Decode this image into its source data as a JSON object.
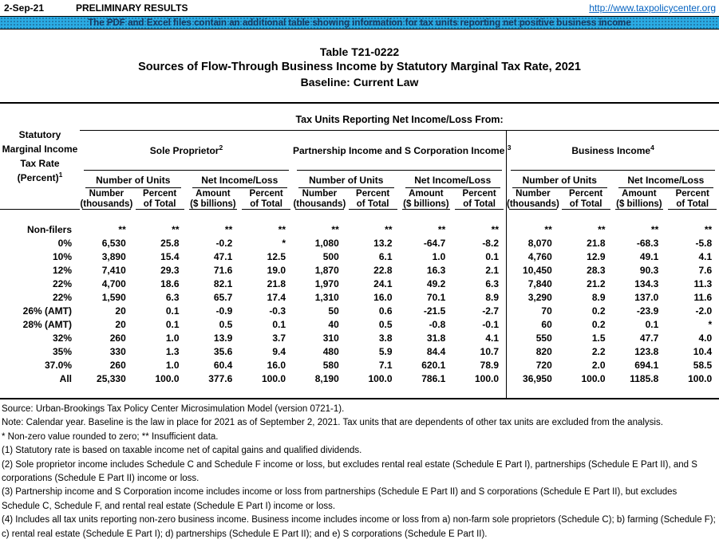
{
  "top": {
    "date": "2-Sep-21",
    "preliminary": "PRELIMINARY RESULTS",
    "url": "http://www.taxpolicycenter.org"
  },
  "banner": {
    "text": "The PDF and Excel files contain an additional table showing information for tax units reporting net positive business income",
    "bg_color": "#2BACE4",
    "text_color": "#17375E"
  },
  "link_color": "#0563C1",
  "title": {
    "line1": "Table T21-0222",
    "line2": "Sources of Flow-Through Business Income by Statutory Marginal Tax Rate, 2021",
    "line3": "Baseline: Current Law"
  },
  "table": {
    "span_header": "Tax Units Reporting Net Income/Loss From:",
    "row_header": {
      "l1": "Statutory",
      "l2": "Marginal Income",
      "l3": "Tax Rate",
      "l4": "(Percent)",
      "sup": "1"
    },
    "groups": [
      {
        "label": "Sole Proprietor",
        "sup": "2"
      },
      {
        "label": "Partnership Income and S Corporation Income",
        "sup": "3"
      },
      {
        "label": "Business Income",
        "sup": "4"
      }
    ],
    "subgroups": [
      "Number of Units",
      "Net Income/Loss"
    ],
    "col_headers": [
      {
        "t": "Number",
        "b": "(thousands)"
      },
      {
        "t": "Percent",
        "b": "of Total"
      },
      {
        "t": "Amount",
        "b": "($ billions)"
      },
      {
        "t": "Percent",
        "b": "of Total"
      }
    ],
    "rows": [
      {
        "label": "Non-filers",
        "cells": [
          "**",
          "**",
          "**",
          "**",
          "**",
          "**",
          "**",
          "**",
          "**",
          "**",
          "**",
          "**"
        ]
      },
      {
        "label": "0%",
        "cells": [
          "6,530",
          "25.8",
          "-0.2",
          "*",
          "1,080",
          "13.2",
          "-64.7",
          "-8.2",
          "8,070",
          "21.8",
          "-68.3",
          "-5.8"
        ]
      },
      {
        "label": "10%",
        "cells": [
          "3,890",
          "15.4",
          "47.1",
          "12.5",
          "500",
          "6.1",
          "1.0",
          "0.1",
          "4,760",
          "12.9",
          "49.1",
          "4.1"
        ]
      },
      {
        "label": "12%",
        "cells": [
          "7,410",
          "29.3",
          "71.6",
          "19.0",
          "1,870",
          "22.8",
          "16.3",
          "2.1",
          "10,450",
          "28.3",
          "90.3",
          "7.6"
        ]
      },
      {
        "label": "22%",
        "cells": [
          "4,700",
          "18.6",
          "82.1",
          "21.8",
          "1,970",
          "24.1",
          "49.2",
          "6.3",
          "7,840",
          "21.2",
          "134.3",
          "11.3"
        ]
      },
      {
        "label": "22%",
        "cells": [
          "1,590",
          "6.3",
          "65.7",
          "17.4",
          "1,310",
          "16.0",
          "70.1",
          "8.9",
          "3,290",
          "8.9",
          "137.0",
          "11.6"
        ]
      },
      {
        "label": "26% (AMT)",
        "cells": [
          "20",
          "0.1",
          "-0.9",
          "-0.3",
          "50",
          "0.6",
          "-21.5",
          "-2.7",
          "70",
          "0.2",
          "-23.9",
          "-2.0"
        ]
      },
      {
        "label": "28% (AMT)",
        "cells": [
          "20",
          "0.1",
          "0.5",
          "0.1",
          "40",
          "0.5",
          "-0.8",
          "-0.1",
          "60",
          "0.2",
          "0.1",
          "*"
        ]
      },
      {
        "label": "32%",
        "cells": [
          "260",
          "1.0",
          "13.9",
          "3.7",
          "310",
          "3.8",
          "31.8",
          "4.1",
          "550",
          "1.5",
          "47.7",
          "4.0"
        ]
      },
      {
        "label": "35%",
        "cells": [
          "330",
          "1.3",
          "35.6",
          "9.4",
          "480",
          "5.9",
          "84.4",
          "10.7",
          "820",
          "2.2",
          "123.8",
          "10.4"
        ]
      },
      {
        "label": "37.0%",
        "cells": [
          "260",
          "1.0",
          "60.4",
          "16.0",
          "580",
          "7.1",
          "620.1",
          "78.9",
          "720",
          "2.0",
          "694.1",
          "58.5"
        ]
      },
      {
        "label": "All",
        "bold": true,
        "cells": [
          "25,330",
          "100.0",
          "377.6",
          "100.0",
          "8,190",
          "100.0",
          "786.1",
          "100.0",
          "36,950",
          "100.0",
          "1185.8",
          "100.0"
        ]
      }
    ]
  },
  "footnotes": [
    "Source: Urban-Brookings Tax Policy Center Microsimulation Model (version 0721-1).",
    "Note: Calendar year. Baseline is the law in place for 2021 as of September 2, 2021. Tax units that are dependents of other tax units are excluded from the analysis.",
    "* Non-zero value rounded to zero; ** Insufficient data.",
    "(1) Statutory rate is based on taxable income net of capital gains and qualified dividends.",
    "(2) Sole proprietor income includes Schedule C and Schedule F income or loss, but excludes rental real estate (Schedule E Part I), partnerships (Schedule E Part II), and S corporations (Schedule E Part II) income or loss.",
    "(3) Partnership income and S Corporation income includes income or loss from partnerships (Schedule E Part II) and S corporations (Schedule E Part II), but excludes Schedule C, Schedule F, and rental real estate (Schedule E Part I) income or loss.",
    "(4) Includes all tax units reporting non-zero business income. Business income includes income or loss from a) non-farm sole proprietors (Schedule C); b) farming (Schedule F); c) rental real estate (Schedule E Part I); d) partnerships (Schedule E Part II); and e) S corporations (Schedule E Part II)."
  ]
}
